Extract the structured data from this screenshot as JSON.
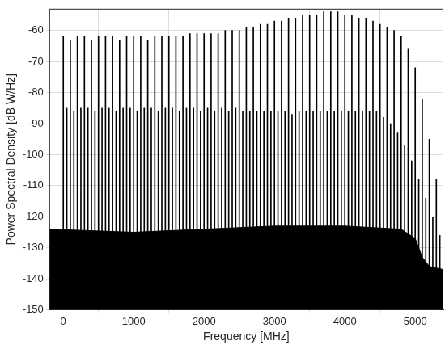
{
  "chart_data": {
    "type": "bar",
    "x_label": "Frequency [MHz]",
    "y_label": "Power Spectral Density [dB W/Hz]",
    "xlim": [
      -200,
      5400
    ],
    "xticks": [
      0,
      1000,
      2000,
      3000,
      4000,
      5000
    ],
    "ylim": [
      -150,
      -53
    ],
    "yticks": [
      -150,
      -140,
      -130,
      -120,
      -110,
      -100,
      -90,
      -80,
      -70,
      -60
    ],
    "grid": true,
    "series": [
      {
        "type": "bar",
        "color": "#000000",
        "x": [
          0,
          50,
          100,
          150,
          200,
          250,
          300,
          350,
          400,
          450,
          500,
          550,
          600,
          650,
          700,
          750,
          800,
          850,
          900,
          950,
          1000,
          1050,
          1100,
          1150,
          1200,
          1250,
          1300,
          1350,
          1400,
          1450,
          1500,
          1550,
          1600,
          1650,
          1700,
          1750,
          1800,
          1850,
          1900,
          1950,
          2000,
          2050,
          2100,
          2150,
          2200,
          2250,
          2300,
          2350,
          2400,
          2450,
          2500,
          2550,
          2600,
          2650,
          2700,
          2750,
          2800,
          2850,
          2900,
          2950,
          3000,
          3050,
          3100,
          3150,
          3200,
          3250,
          3300,
          3350,
          3400,
          3450,
          3500,
          3550,
          3600,
          3650,
          3700,
          3750,
          3800,
          3850,
          3900,
          3950,
          4000,
          4050,
          4100,
          4150,
          4200,
          4250,
          4300,
          4350,
          4400,
          4450,
          4500,
          4550,
          4600,
          4650,
          4700,
          4750,
          4800,
          4850,
          4900,
          4950,
          5000,
          5050,
          5100,
          5150,
          5200,
          5250,
          5300,
          5350
        ],
        "values": [
          -62,
          -85,
          -63,
          -86,
          -62,
          -85,
          -62,
          -85,
          -63,
          -86,
          -62,
          -85,
          -62,
          -85,
          -62,
          -86,
          -63,
          -85,
          -62,
          -85,
          -62,
          -86,
          -62,
          -85,
          -63,
          -85,
          -62,
          -86,
          -62,
          -85,
          -62,
          -85,
          -62,
          -86,
          -62,
          -85,
          -61,
          -85,
          -61,
          -86,
          -61,
          -85,
          -61,
          -86,
          -61,
          -85,
          -60,
          -86,
          -60,
          -85,
          -60,
          -86,
          -59,
          -86,
          -59,
          -86,
          -58,
          -86,
          -58,
          -86,
          -57,
          -86,
          -57,
          -86,
          -56,
          -87,
          -56,
          -86,
          -55,
          -86,
          -55,
          -86,
          -55,
          -86,
          -54,
          -86,
          -54,
          -86,
          -54,
          -86,
          -55,
          -86,
          -55,
          -86,
          -56,
          -86,
          -56,
          -86,
          -57,
          -86,
          -58,
          -88,
          -59,
          -90,
          -60,
          -93,
          -62,
          -97,
          -66,
          -102,
          -72,
          -108,
          -82,
          -114,
          -95,
          -120,
          -108,
          -126
        ]
      },
      {
        "type": "line",
        "color": "#000000",
        "x": [
          -200,
          1000,
          2000,
          3000,
          4000,
          4800,
          5000,
          5100,
          5200,
          5400
        ],
        "values": [
          -124,
          -125,
          -124,
          -123,
          -123,
          -124,
          -127,
          -133,
          -136,
          -137
        ]
      }
    ]
  }
}
